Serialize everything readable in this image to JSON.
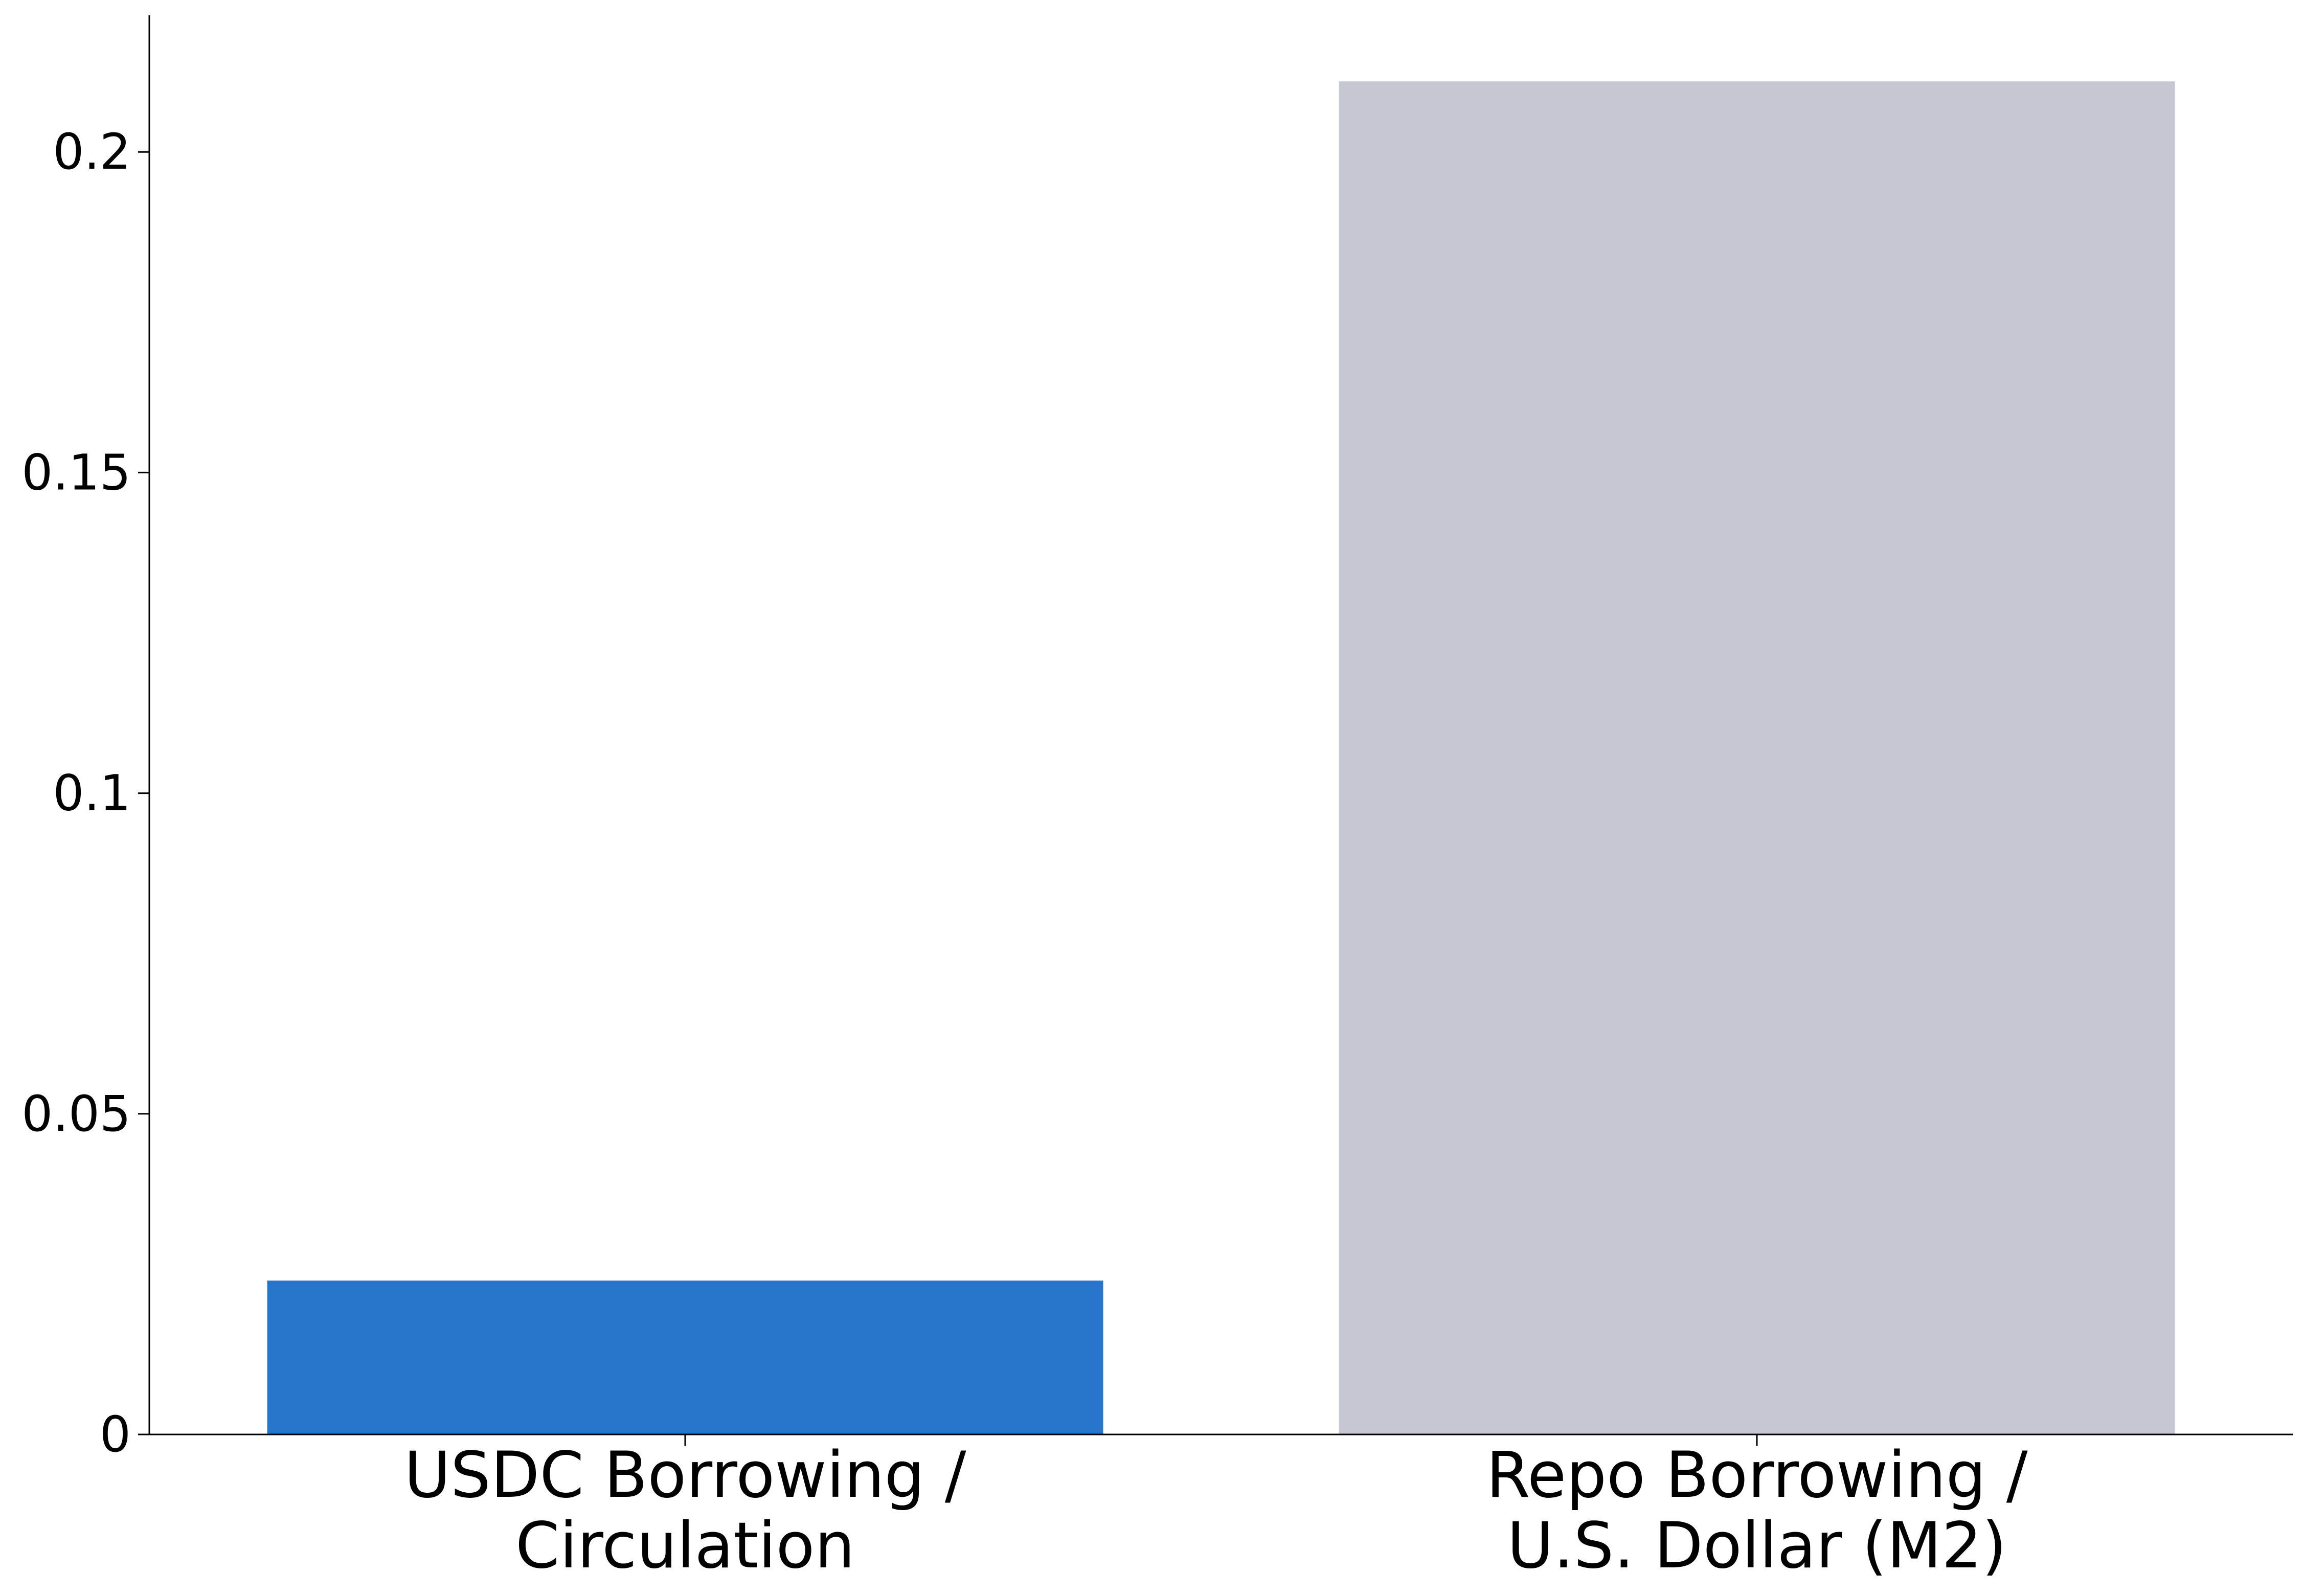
{
  "chart_data": {
    "type": "bar",
    "categories": [
      [
        "USDC Borrowing /",
        "Circulation"
      ],
      [
        "Repo Borrowing /",
        "U.S. Dollar (M2)"
      ]
    ],
    "values": [
      0.024,
      0.211
    ],
    "colors": [
      "#2876cc",
      "#c7c6d3"
    ],
    "title": "",
    "xlabel": "",
    "ylabel": "",
    "ylim": [
      0,
      0.2213
    ],
    "yticks": [
      0,
      0.05,
      0.1,
      0.15,
      0.2
    ],
    "ytick_labels": [
      "0",
      "0.05",
      "0.1",
      "0.15",
      "0.2"
    ],
    "grid": false,
    "spines": [
      "left",
      "bottom"
    ]
  }
}
